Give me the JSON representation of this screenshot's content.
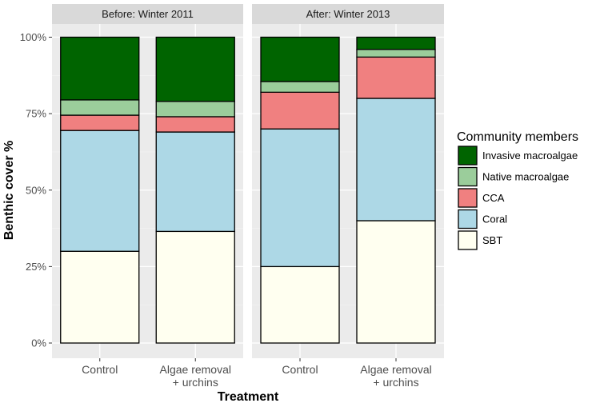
{
  "chart_data": {
    "type": "bar",
    "stacked": true,
    "percent_scale": true,
    "xlabel": "Treatment",
    "ylabel": "Benthic cover %",
    "ylim": [
      0,
      100
    ],
    "yticks": [
      "0%",
      "25%",
      "50%",
      "75%",
      "100%"
    ],
    "ytick_values": [
      0,
      25,
      50,
      75,
      100
    ],
    "categories": [
      [
        "Control"
      ],
      [
        "Algae removal",
        "+ urchins"
      ]
    ],
    "legend": {
      "title": "Community members",
      "position": "right"
    },
    "series": [
      {
        "name": "SBT",
        "color": "#FFFFF0"
      },
      {
        "name": "Coral",
        "color": "#ADD8E6"
      },
      {
        "name": "CCA",
        "color": "#F08080"
      },
      {
        "name": "Native macroalgae",
        "color": "#9BCD9B"
      },
      {
        "name": "Invasive macroalgae",
        "color": "#006400"
      }
    ],
    "panels": [
      {
        "title": "Before:  Winter 2011",
        "bars": [
          {
            "values": [
              30,
              39.5,
              5,
              5,
              20.5
            ]
          },
          {
            "values": [
              36.5,
              32.5,
              5,
              5,
              21
            ]
          }
        ]
      },
      {
        "title": "After: Winter 2013",
        "bars": [
          {
            "values": [
              25,
              45,
              12,
              3.5,
              14.5
            ]
          },
          {
            "values": [
              40,
              40,
              13.5,
              2.5,
              4
            ]
          }
        ]
      }
    ],
    "grid": true,
    "background": "#EBEBEB"
  }
}
